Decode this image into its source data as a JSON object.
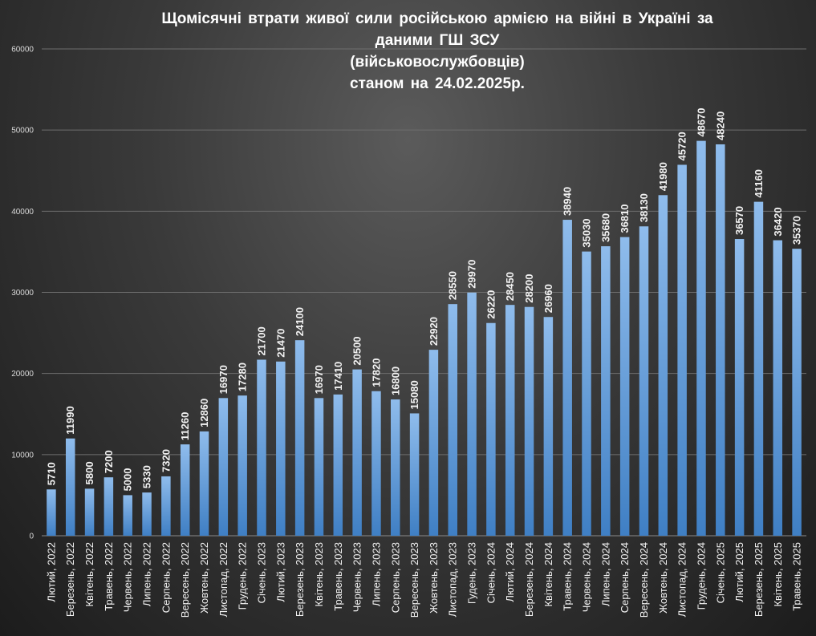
{
  "chart_data": {
    "type": "bar",
    "title_lines": [
      "Щомісячні втрати живої сили російською армією на війні в Україні за",
      "даними ГШ ЗСУ",
      "(військовослужбовців)",
      "станом на 24.02.2025р."
    ],
    "categories": [
      "Лютий, 2022",
      "Березень, 2022",
      "Квітень, 2022",
      "Травень, 2022",
      "Червень, 2022",
      "Липень, 2022",
      "Серпень, 2022",
      "Вересень, 2022",
      "Жовтень, 2022",
      "Листопад, 2022",
      "Грудень, 2022",
      "Січень, 2023",
      "Лютий, 2023",
      "Березень, 2023",
      "Квітень, 2023",
      "Травень, 2023",
      "Червень, 2023",
      "Липень, 2023",
      "Серпень, 2023",
      "Вересень, 2023",
      "Жовтень, 2023",
      "Листопад, 2023",
      "Гудень, 2023",
      "Січень, 2024",
      "Лютий, 2024",
      "Березень, 2024",
      "Квітень, 2024",
      "Травень, 2024",
      "Червень, 2024",
      "Липень, 2024",
      "Серпень, 2024",
      "Вересень, 2024",
      "Жовтень, 2024",
      "Листопад, 2024",
      "Грудень, 2024",
      "Січень, 2025",
      "Лютий, 2025",
      "Березень, 2025",
      "Квітень, 2025",
      "Травень, 2025"
    ],
    "values": [
      5710,
      11990,
      5800,
      7200,
      5000,
      5330,
      7320,
      11260,
      12860,
      16970,
      17280,
      21700,
      21470,
      24100,
      16970,
      17410,
      20500,
      17820,
      16800,
      15080,
      22920,
      28550,
      29970,
      26220,
      28450,
      28200,
      26960,
      38940,
      35030,
      35680,
      36810,
      38130,
      41980,
      45720,
      48670,
      48240,
      36570,
      41160,
      36420,
      35370
    ],
    "ylim": [
      0,
      60000
    ],
    "yticks": [
      0,
      10000,
      20000,
      30000,
      40000,
      50000,
      60000
    ],
    "grid": true,
    "legend": "none",
    "xlabel": "",
    "ylabel": "",
    "colors": {
      "bar_top": "#8fbcec",
      "bar_bottom": "#3f7fc4",
      "gridline": "#6e6e6e",
      "text": "#f2f2f2"
    }
  }
}
